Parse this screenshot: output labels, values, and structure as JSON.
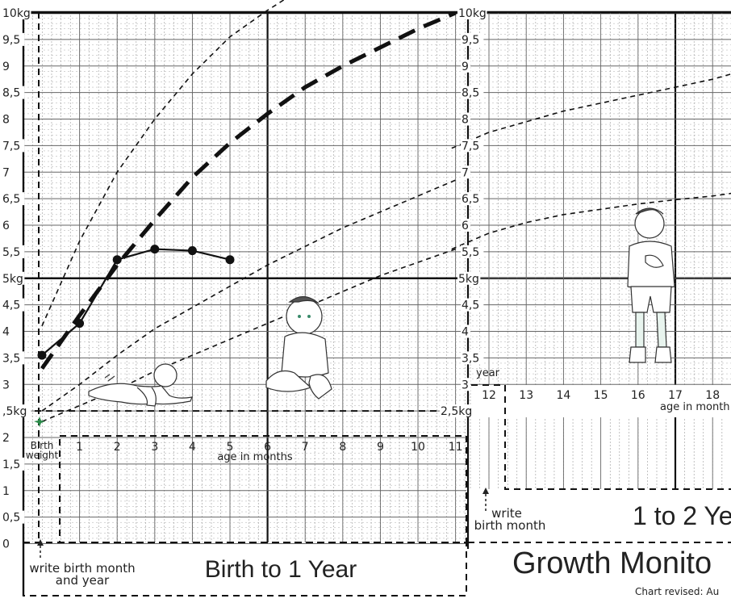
{
  "chart_data": [
    {
      "type": "line",
      "title": "Birth to 1 Year",
      "xlabel": "age in months",
      "ylabel": "",
      "xlim": [
        -1,
        12
      ],
      "ylim": [
        0,
        10
      ],
      "x_ticks": [
        "1",
        "2",
        "3",
        "4",
        "5",
        "6",
        "7",
        "8",
        "9",
        "10",
        "11"
      ],
      "birth_tick_label": "Birth weight",
      "y_ticks": [
        "0",
        "0,5",
        "1",
        "1,5",
        "2",
        ",5kg",
        "3",
        "3,5",
        "4",
        "4,5",
        "5kg",
        "5,5",
        "6",
        "6,5",
        "7",
        "7,5",
        "8",
        "8,5",
        "9",
        "9,5",
        "10kg"
      ],
      "right_ticks": [
        "2,5kg",
        "3",
        "3,5",
        "4",
        "4,5",
        "5kg",
        "5,5",
        "6",
        "6,5",
        "7",
        "7,5",
        "8",
        "8,5",
        "9",
        "9,5",
        "10kg"
      ],
      "grid": true,
      "reference_curves": [
        {
          "style": "dashed",
          "x": [
            0,
            1,
            2,
            3,
            4,
            5,
            6,
            7
          ],
          "y": [
            4.1,
            5.7,
            7.0,
            8.0,
            8.85,
            9.55,
            10.05,
            10.5
          ]
        },
        {
          "style": "heavy-dashed",
          "x": [
            0,
            1,
            2,
            3,
            4,
            5,
            6,
            7,
            8,
            9,
            10,
            11
          ],
          "y": [
            3.3,
            4.3,
            5.25,
            6.1,
            6.9,
            7.55,
            8.1,
            8.6,
            9.0,
            9.35,
            9.7,
            10.0
          ]
        },
        {
          "style": "dashed",
          "x": [
            0,
            1,
            2,
            3,
            4,
            5,
            6,
            7,
            8,
            9,
            10,
            11
          ],
          "y": [
            2.5,
            3.0,
            3.55,
            4.05,
            4.45,
            4.85,
            5.25,
            5.6,
            5.95,
            6.25,
            6.55,
            6.85
          ]
        },
        {
          "style": "dashed",
          "x": [
            0,
            1,
            2,
            3,
            4,
            5,
            6,
            7,
            8,
            9,
            10,
            11
          ],
          "y": [
            2.3,
            2.6,
            2.9,
            3.25,
            3.55,
            3.85,
            4.15,
            4.45,
            4.75,
            5.05,
            5.3,
            5.55
          ]
        }
      ],
      "measured": {
        "x": [
          0,
          1,
          2,
          3,
          4,
          5
        ],
        "y": [
          3.55,
          4.15,
          5.35,
          5.55,
          5.52,
          5.35
        ]
      },
      "birth_marker": {
        "x": 0,
        "y": 2.25
      },
      "note": "write birth month and year"
    },
    {
      "type": "line",
      "title": "1 to 2 Ye",
      "xlabel": "age in month",
      "xlim": [
        11,
        19
      ],
      "ylim": [
        2.5,
        10
      ],
      "x_ticks": [
        "12",
        "13",
        "14",
        "15",
        "16",
        "17",
        "18"
      ],
      "tick_header": "year",
      "grid": true,
      "reference_curves": [
        {
          "style": "dashed",
          "x": [
            11,
            12,
            13,
            14,
            15,
            16,
            17,
            18,
            19
          ],
          "y": [
            7.45,
            7.75,
            7.95,
            8.15,
            8.3,
            8.45,
            8.6,
            8.75,
            8.95
          ]
        },
        {
          "style": "dashed",
          "x": [
            11,
            12,
            13,
            14,
            15,
            16,
            17,
            18,
            19
          ],
          "y": [
            5.55,
            5.85,
            6.05,
            6.2,
            6.3,
            6.4,
            6.48,
            6.55,
            6.65
          ]
        }
      ],
      "note": "write birth month"
    }
  ],
  "texts": {
    "main_title": "Growth Monito",
    "revised": "Chart revised: Au"
  }
}
